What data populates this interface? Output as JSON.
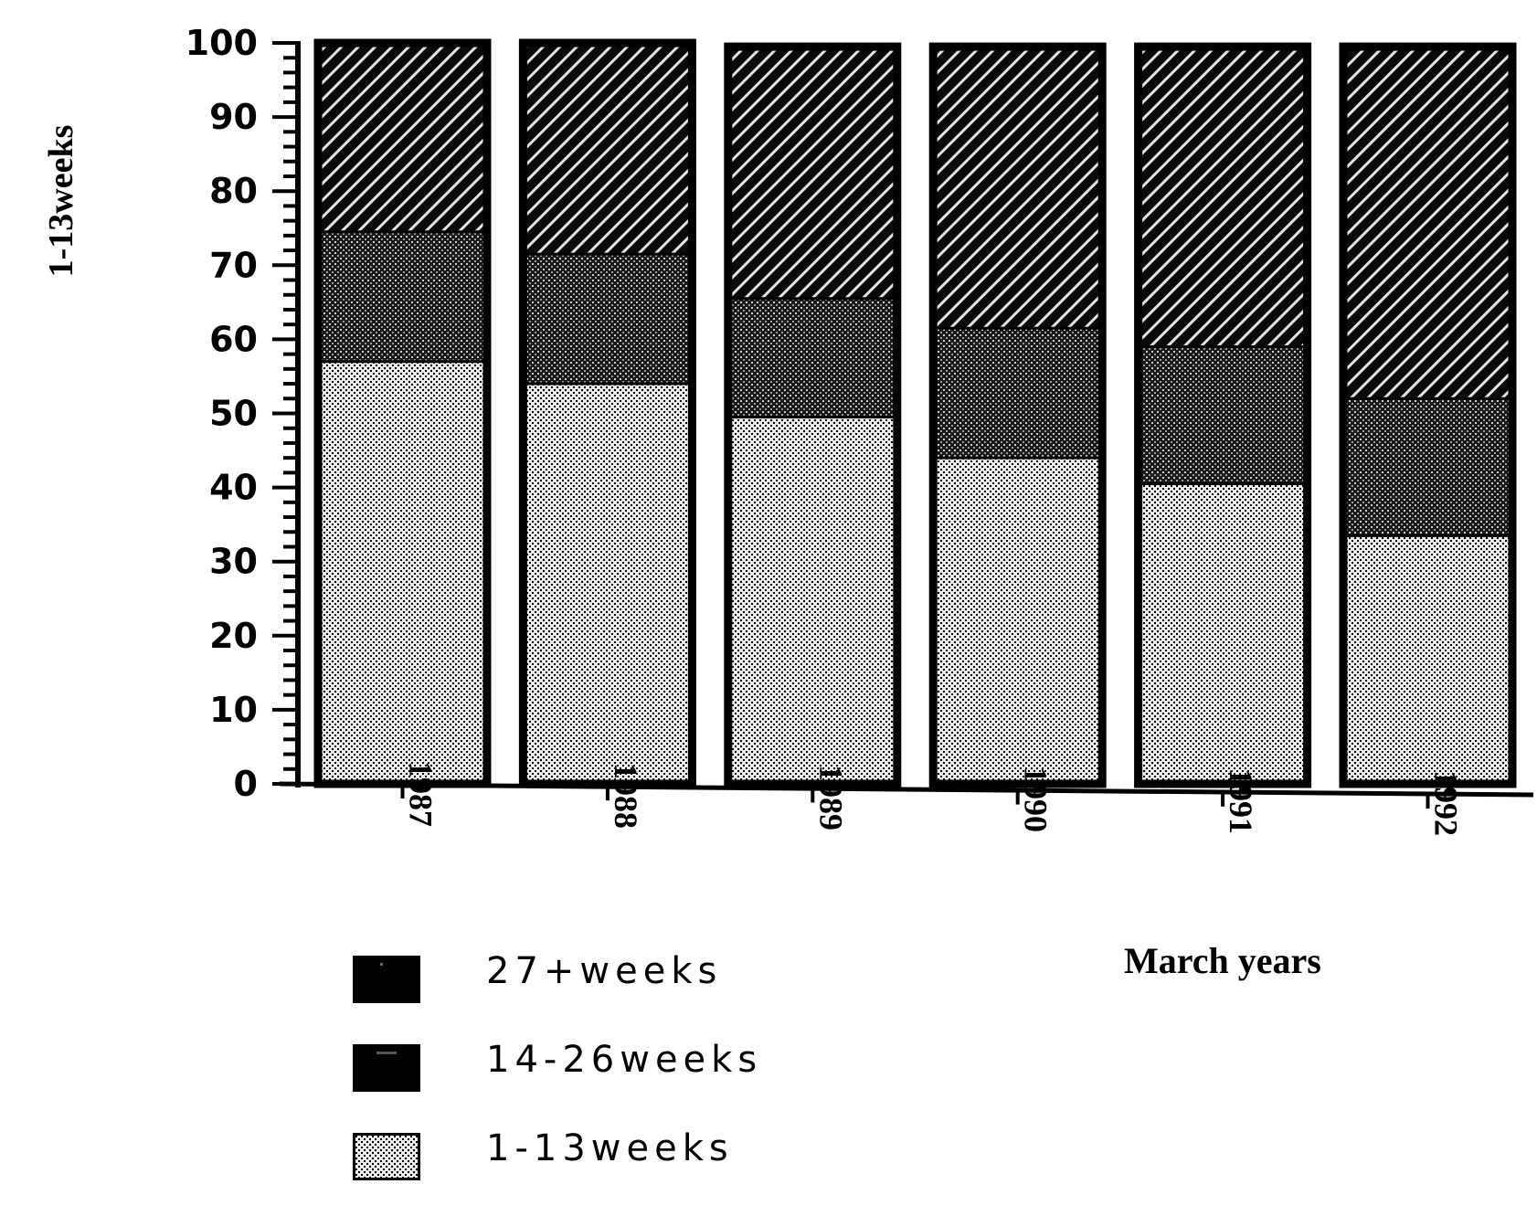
{
  "chart_data": {
    "type": "bar",
    "stacked": true,
    "title": "",
    "xlabel": "March years",
    "ylabel": "1-13weeks",
    "categories": [
      "1987",
      "1988",
      "1989",
      "1990",
      "1991",
      "1992"
    ],
    "series": [
      {
        "name": "1-13weeks",
        "pattern": "fine-dots",
        "values": [
          57,
          54,
          49.5,
          44,
          40.5,
          33.5
        ]
      },
      {
        "name": "14-26weeks",
        "pattern": "dense-crosshatch",
        "values": [
          17.5,
          17.5,
          16,
          17.5,
          18.5,
          18.5
        ]
      },
      {
        "name": "27+weeks",
        "pattern": "diagonal-hatch",
        "values": [
          25.5,
          28.5,
          34,
          38,
          40.5,
          47.5
        ]
      }
    ],
    "ylim": [
      0,
      100
    ],
    "yticks": [
      "0",
      "10",
      "20",
      "30",
      "40",
      "50",
      "60",
      "70",
      "80",
      "90",
      "100"
    ],
    "grid": false,
    "legend": {
      "placement": "bottom-left",
      "entries": [
        "27+weeks",
        "14-26weeks",
        "1-13weeks"
      ],
      "swatch_color": "#000000"
    },
    "colors": {
      "ink": "#000000",
      "background": "#ffffff"
    }
  }
}
